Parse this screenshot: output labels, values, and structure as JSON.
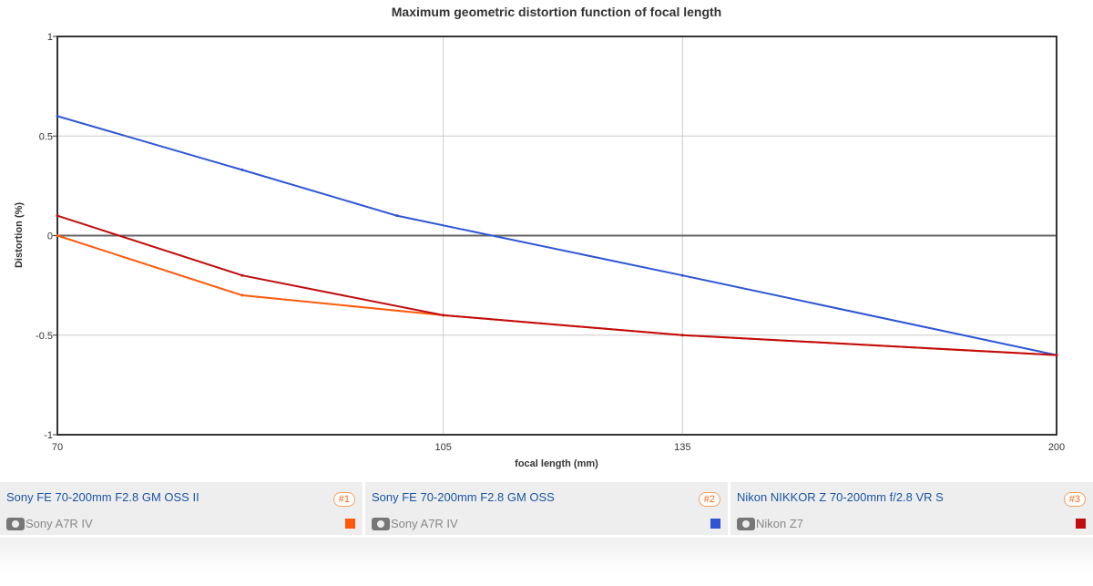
{
  "chart_data": {
    "type": "line",
    "title": "Maximum geometric distortion function of focal length",
    "xlabel": "focal length (mm)",
    "ylabel": "Distortion (%)",
    "xscale": "log",
    "xlim": [
      70,
      200
    ],
    "ylim": [
      -1,
      1
    ],
    "xticks": [
      70,
      105,
      135,
      200
    ],
    "yticks": [
      1,
      0.5,
      0,
      -0.5,
      -1
    ],
    "ytick_labels": [
      "1",
      "0.5",
      "0",
      "-0.5",
      "-1"
    ],
    "grid": true,
    "series": [
      {
        "name": "Sony FE 70-200mm F2.8 GM OSS II",
        "color": "#ff5a0a",
        "x": [
          70,
          85,
          105,
          135,
          200
        ],
        "y": [
          0,
          -0.3,
          -0.4,
          -0.5,
          -0.6
        ]
      },
      {
        "name": "Sony FE 70-200mm F2.8 GM OSS",
        "color": "#2e55d6",
        "x": [
          70,
          85,
          100,
          135,
          200
        ],
        "y": [
          0.6,
          0.33,
          0.1,
          -0.2,
          -0.6
        ]
      },
      {
        "name": "Nikon NIKKOR Z 70-200mm f/2.8 VR S",
        "color": "#c00d0d",
        "x": [
          70,
          85,
          105,
          135,
          200
        ],
        "y": [
          0.1,
          -0.2,
          -0.4,
          -0.5,
          -0.6
        ]
      }
    ]
  },
  "legend": [
    {
      "lens": "Sony FE 70-200mm F2.8 GM OSS II",
      "badge": "#1",
      "camera": "Sony A7R IV",
      "color": "#ff5a0a"
    },
    {
      "lens": "Sony FE 70-200mm F2.8 GM OSS",
      "badge": "#2",
      "camera": "Sony A7R IV",
      "color": "#2e55d6"
    },
    {
      "lens": "Nikon NIKKOR Z 70-200mm f/2.8 VR S",
      "badge": "#3",
      "camera": "Nikon Z7",
      "color": "#c00d0d"
    }
  ]
}
